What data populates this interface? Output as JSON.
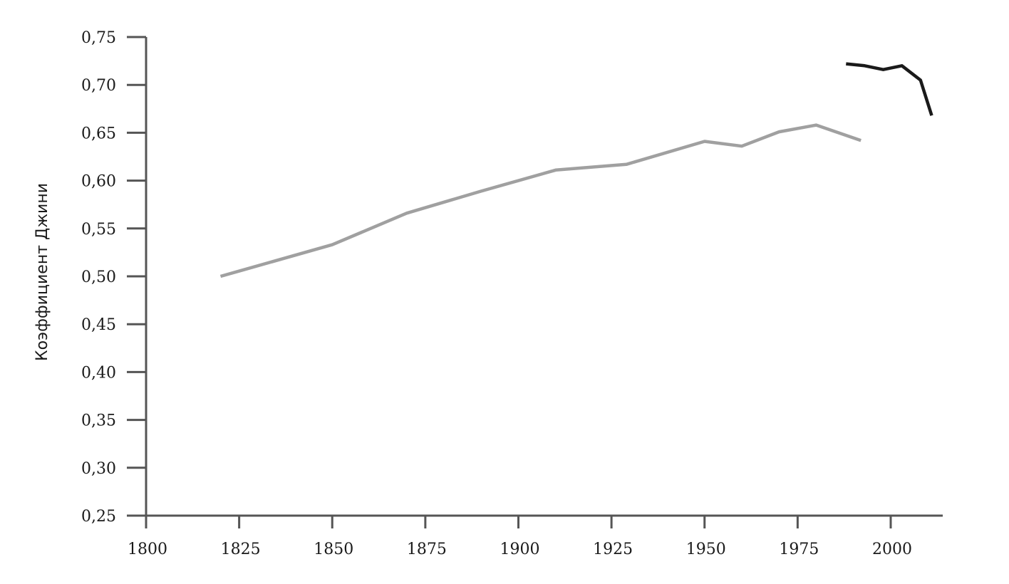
{
  "chart_data": {
    "type": "line",
    "title": "",
    "xlabel": "",
    "ylabel": "Коэффициент Джини",
    "xlim": [
      1800,
      2013
    ],
    "ylim": [
      0.25,
      0.75
    ],
    "x_ticks": [
      1800,
      1825,
      1850,
      1875,
      1900,
      1925,
      1950,
      1975,
      2000
    ],
    "x_tick_labels": [
      "1800",
      "1825",
      "1850",
      "1875",
      "1900",
      "1925",
      "1950",
      "1975",
      "2000"
    ],
    "y_ticks": [
      0.25,
      0.3,
      0.35,
      0.4,
      0.45,
      0.5,
      0.55,
      0.6,
      0.65,
      0.7,
      0.75
    ],
    "y_tick_labels": [
      "0,25",
      "0,30",
      "0,35",
      "0,40",
      "0,45",
      "0,50",
      "0,55",
      "0,60",
      "0,65",
      "0,70",
      "0,75"
    ],
    "grid": false,
    "legend": "none",
    "series": [
      {
        "color": "#a0a0a0",
        "x": [
          1820,
          1850,
          1870,
          1890,
          1910,
          1929,
          1950,
          1960,
          1970,
          1980,
          1992
        ],
        "values": [
          0.5,
          0.533,
          0.566,
          0.589,
          0.611,
          0.617,
          0.641,
          0.636,
          0.651,
          0.658,
          0.642
        ]
      },
      {
        "color": "#1a1a1a",
        "x": [
          1988,
          1993,
          1998,
          2003,
          2008,
          2011
        ],
        "values": [
          0.722,
          0.72,
          0.716,
          0.72,
          0.705,
          0.668
        ]
      }
    ]
  }
}
